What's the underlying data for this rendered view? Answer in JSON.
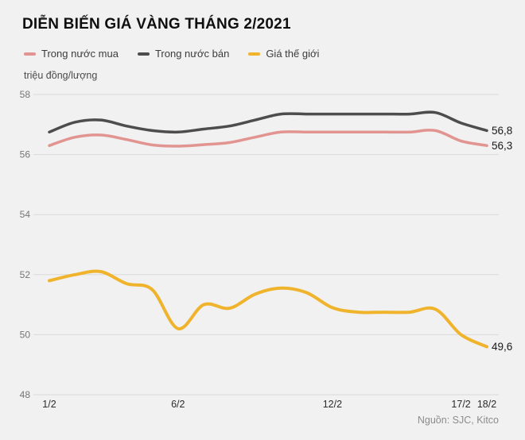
{
  "page": {
    "background": "#f1f1f2"
  },
  "header": {
    "title": "DIỄN BIẾN GIÁ VÀNG THÁNG 2/2021"
  },
  "legend": {
    "items": [
      {
        "label": "Trong nước mua",
        "color": "#e19490"
      },
      {
        "label": "Trong nước bán",
        "color": "#4d4d4d"
      },
      {
        "label": "Giá thế giới",
        "color": "#f0b32c"
      }
    ]
  },
  "unit_label": "triệu đồng/lượng",
  "source": "Nguồn: SJC, Kitco",
  "chart_data": {
    "type": "line",
    "title": "DIỄN BIẾN GIÁ VÀNG THÁNG 2/2021",
    "ylabel": "triệu đồng/lượng",
    "x": [
      "1/2",
      "2/2",
      "3/2",
      "4/2",
      "5/2",
      "6/2",
      "7/2",
      "8/2",
      "9/2",
      "10/2",
      "11/2",
      "12/2",
      "13/2",
      "14/2",
      "15/2",
      "16/2",
      "17/2",
      "18/2"
    ],
    "xticks": [
      "1/2",
      "6/2",
      "12/2",
      "17/2",
      "18/2"
    ],
    "ylim": [
      48,
      58
    ],
    "yticks": [
      58,
      56,
      54,
      52,
      50,
      48
    ],
    "grid": true,
    "legend_position": "top",
    "series": [
      {
        "name": "Trong nước mua",
        "color": "#e19490",
        "end_label": "56,3",
        "values": [
          56.3,
          56.58,
          56.65,
          56.5,
          56.32,
          56.28,
          56.33,
          56.4,
          56.58,
          56.75,
          56.75,
          56.75,
          56.75,
          56.75,
          56.75,
          56.8,
          56.45,
          56.3
        ]
      },
      {
        "name": "Trong nước bán",
        "color": "#4d4d4d",
        "end_label": "56,8",
        "values": [
          56.75,
          57.08,
          57.15,
          56.95,
          56.8,
          56.75,
          56.85,
          56.95,
          57.15,
          57.35,
          57.35,
          57.35,
          57.35,
          57.35,
          57.35,
          57.4,
          57.05,
          56.8
        ]
      },
      {
        "name": "Giá thế giới",
        "color": "#f0b32c",
        "end_label": "49,6",
        "values": [
          51.8,
          52.0,
          52.1,
          51.7,
          51.5,
          50.2,
          51.0,
          50.88,
          51.35,
          51.55,
          51.4,
          50.9,
          50.75,
          50.75,
          50.75,
          50.85,
          50.0,
          49.6
        ]
      }
    ]
  }
}
